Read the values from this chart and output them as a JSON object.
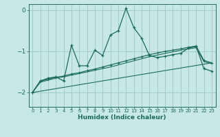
{
  "xlabel": "Humidex (Indice chaleur)",
  "xlim": [
    -0.5,
    23.5
  ],
  "ylim": [
    -2.35,
    0.15
  ],
  "yticks": [
    0,
    -1,
    -2
  ],
  "xticks": [
    0,
    1,
    2,
    3,
    4,
    5,
    6,
    7,
    8,
    9,
    10,
    11,
    12,
    13,
    14,
    15,
    16,
    17,
    18,
    19,
    20,
    21,
    22,
    23
  ],
  "bg_color": "#c8e8e8",
  "grid_color": "#a0cccc",
  "line_color": "#1a6b5a",
  "line1_x": [
    0,
    1,
    2,
    3,
    4,
    5,
    6,
    7,
    8,
    9,
    10,
    11,
    12,
    13,
    14,
    15,
    16,
    17,
    18,
    19,
    20,
    21,
    22,
    23
  ],
  "line1_y": [
    -2.0,
    -1.72,
    -1.65,
    -1.62,
    -1.72,
    -0.85,
    -1.35,
    -1.35,
    -0.97,
    -1.1,
    -0.6,
    -0.5,
    0.05,
    -0.42,
    -0.68,
    -1.1,
    -1.15,
    -1.12,
    -1.08,
    -1.05,
    -0.92,
    -0.88,
    -1.42,
    -1.48
  ],
  "line2_x": [
    0,
    1,
    2,
    3,
    4,
    5,
    6,
    7,
    8,
    9,
    10,
    11,
    12,
    13,
    14,
    15,
    16,
    17,
    18,
    19,
    20,
    21,
    22,
    23
  ],
  "line2_y": [
    -2.0,
    -1.72,
    -1.68,
    -1.63,
    -1.6,
    -1.55,
    -1.52,
    -1.47,
    -1.43,
    -1.38,
    -1.33,
    -1.28,
    -1.23,
    -1.18,
    -1.13,
    -1.08,
    -1.04,
    -1.0,
    -0.97,
    -0.94,
    -0.9,
    -0.87,
    -1.22,
    -1.28
  ],
  "line3_x": [
    0,
    23
  ],
  "line3_y": [
    -2.0,
    -1.28
  ],
  "line4_x": [
    0,
    1,
    2,
    3,
    4,
    5,
    6,
    7,
    8,
    9,
    10,
    11,
    12,
    13,
    14,
    15,
    16,
    17,
    18,
    19,
    20,
    21,
    22,
    23
  ],
  "line4_y": [
    -2.0,
    -1.75,
    -1.7,
    -1.65,
    -1.62,
    -1.58,
    -1.54,
    -1.5,
    -1.46,
    -1.42,
    -1.38,
    -1.33,
    -1.28,
    -1.23,
    -1.18,
    -1.13,
    -1.09,
    -1.05,
    -1.01,
    -0.97,
    -0.94,
    -0.91,
    -1.25,
    -1.3
  ]
}
